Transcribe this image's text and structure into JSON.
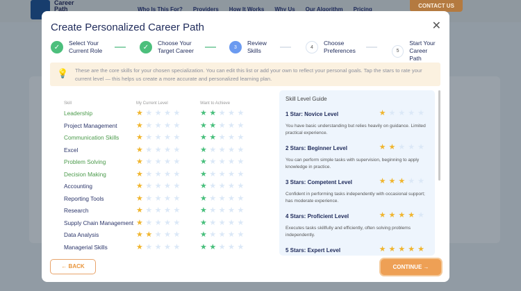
{
  "nav": {
    "brand": "Career Path",
    "links": [
      "Who Is This For?",
      "Providers",
      "How It Works",
      "Why Us",
      "Our Algorithm",
      "Pricing"
    ],
    "contact": "CONTACT US"
  },
  "modal": {
    "title": "Create Personalized Career Path",
    "steps": [
      {
        "num": "1",
        "label1": "Select Your",
        "label2": "Current Role",
        "state": "done"
      },
      {
        "num": "2",
        "label1": "Choose Your",
        "label2": "Target Career",
        "state": "done"
      },
      {
        "num": "3",
        "label1": "Review",
        "label2": "Skills",
        "state": "current"
      },
      {
        "num": "4",
        "label1": "Choose",
        "label2": "Preferences",
        "state": "todo"
      },
      {
        "num": "5",
        "label1": "Start Your",
        "label2": "Career Path",
        "state": "todo"
      }
    ],
    "info": "These are the core skills for your chosen specialization. You can edit this list or add your own to reflect your personal goals. Tap the stars to rate your current level — this helps us create a more accurate and personalized learning plan.",
    "headers": {
      "skill": "Skill",
      "current": "My Current Level",
      "target": "Want to Achieve"
    },
    "skills": [
      {
        "name": "Leadership",
        "current": 1,
        "target": 2,
        "highlight": true
      },
      {
        "name": "Project Management",
        "current": 1,
        "target": 2,
        "highlight": false
      },
      {
        "name": "Communication Skills",
        "current": 1,
        "target": 2,
        "highlight": true
      },
      {
        "name": "Excel",
        "current": 1,
        "target": 1,
        "highlight": false
      },
      {
        "name": "Problem Solving",
        "current": 1,
        "target": 1,
        "highlight": true
      },
      {
        "name": "Decision Making",
        "current": 1,
        "target": 1,
        "highlight": true
      },
      {
        "name": "Accounting",
        "current": 1,
        "target": 1,
        "highlight": false
      },
      {
        "name": "Reporting Tools",
        "current": 1,
        "target": 1,
        "highlight": false
      },
      {
        "name": "Research",
        "current": 1,
        "target": 1,
        "highlight": false
      },
      {
        "name": "Supply Chain Management",
        "current": 1,
        "target": 1,
        "highlight": false
      },
      {
        "name": "Data Analysis",
        "current": 2,
        "target": 1,
        "highlight": false
      },
      {
        "name": "Managerial Skills",
        "current": 1,
        "target": 2,
        "highlight": false
      }
    ],
    "guide": {
      "title": "Skill Level Guide",
      "levels": [
        {
          "stars": 1,
          "title": "1 Star: Novice Level",
          "desc": "You have basic understanding but relies heavily on guidance. Limited practical experience."
        },
        {
          "stars": 2,
          "title": "2 Stars: Beginner Level",
          "desc": "You can perform simple tasks with supervision, beginning to apply knowledge in practice."
        },
        {
          "stars": 3,
          "title": "3 Stars: Competent Level",
          "desc": "Confident in performing tasks independently with occasional support; has moderate experience."
        },
        {
          "stars": 4,
          "title": "4 Stars: Proficient Level",
          "desc": "Executes tasks skillfully and efficiently, often solving problems independently."
        },
        {
          "stars": 5,
          "title": "5 Stars: Expert Level",
          "desc": ""
        }
      ]
    },
    "back": "←  BACK",
    "continue": "CONTINUE  →"
  },
  "colors": {
    "accent": "#e8943a",
    "done": "#4cbf7c",
    "current": "#6b9af0",
    "star_current": "#f0b52e",
    "star_target": "#48bf7c",
    "highlight_skill": "#4a9a4a",
    "skill": "#2b356a"
  }
}
